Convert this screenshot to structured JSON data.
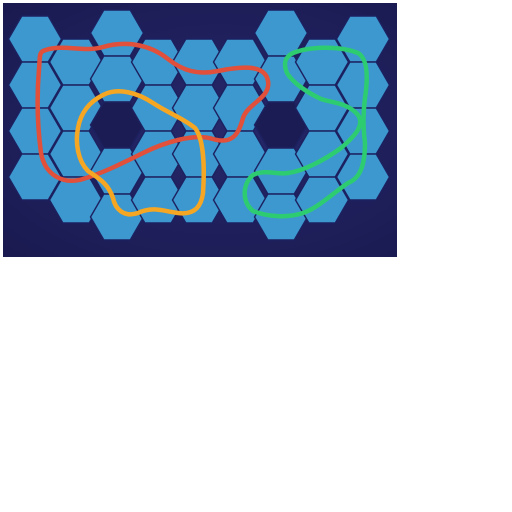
{
  "puzzle": {
    "background_color": "#1f1f5c",
    "tile_color": "#3d98cf",
    "tile_border_color": "#1c2160",
    "hole_color": "#1c1c55",
    "loops": [
      {
        "name": "red",
        "color": "#e0503a"
      },
      {
        "name": "orange",
        "color": "#f5a623"
      },
      {
        "name": "green",
        "color": "#2ecc71"
      }
    ]
  }
}
